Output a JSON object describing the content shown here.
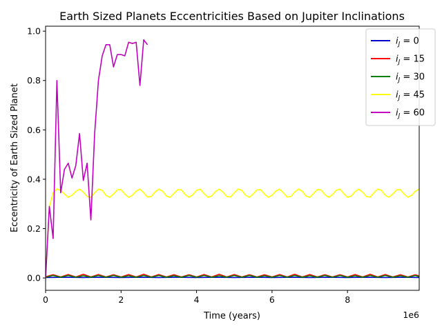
{
  "chart_data": {
    "type": "line",
    "title": "Earth Sized Planets Eccentricities Based on Jupiter Inclinations",
    "xlabel": "Time (years)",
    "ylabel": "Eccentricity of Earth Sized Planet",
    "x_offset_label": "1e6",
    "xlim": [
      0,
      9900000
    ],
    "ylim": [
      -0.05,
      1.02
    ],
    "x_ticks": [
      0,
      2000000,
      4000000,
      6000000,
      8000000
    ],
    "x_tick_labels": [
      "0",
      "2",
      "4",
      "6",
      "8"
    ],
    "y_ticks": [
      0.0,
      0.2,
      0.4,
      0.6,
      0.8,
      1.0
    ],
    "y_tick_labels": [
      "0.0",
      "0.2",
      "0.4",
      "0.6",
      "0.8",
      "1.0"
    ],
    "grid": false,
    "legend_position": "upper-right",
    "series": [
      {
        "name": "i_j = 0",
        "legend": {
          "prefix": "i",
          "sub": "J",
          "suffix": " = 0"
        },
        "color": "#0000cc",
        "x": [
          0,
          500000,
          1000000,
          1500000,
          2000000,
          2500000,
          3000000,
          3500000,
          4000000,
          4500000,
          5000000,
          5500000,
          6000000,
          6500000,
          7000000,
          7500000,
          8000000,
          8500000,
          9000000,
          9500000,
          9900000
        ],
        "y": [
          0.002,
          0.003,
          0.002,
          0.003,
          0.002,
          0.003,
          0.002,
          0.003,
          0.002,
          0.003,
          0.002,
          0.003,
          0.002,
          0.003,
          0.002,
          0.003,
          0.002,
          0.003,
          0.002,
          0.003,
          0.002
        ]
      },
      {
        "name": "i_j = 15",
        "legend": {
          "prefix": "i",
          "sub": "J",
          "suffix": " = 15"
        },
        "color": "#ff0000",
        "x": [
          0,
          200000,
          400000,
          600000,
          800000,
          1000000,
          1200000,
          1400000,
          1600000,
          1800000,
          2000000,
          2200000,
          2400000,
          2600000,
          2800000,
          3000000,
          3200000,
          3400000,
          3600000,
          3800000,
          4000000,
          4200000,
          4400000,
          4600000,
          4800000,
          5000000,
          5200000,
          5400000,
          5600000,
          5800000,
          6000000,
          6200000,
          6400000,
          6600000,
          6800000,
          7000000,
          7200000,
          7400000,
          7600000,
          7800000,
          8000000,
          8200000,
          8400000,
          8600000,
          8800000,
          9000000,
          9200000,
          9400000,
          9600000,
          9800000,
          9900000
        ],
        "y": [
          0.005,
          0.013,
          0.004,
          0.014,
          0.004,
          0.015,
          0.004,
          0.014,
          0.004,
          0.013,
          0.004,
          0.014,
          0.004,
          0.015,
          0.004,
          0.014,
          0.004,
          0.013,
          0.004,
          0.013,
          0.004,
          0.014,
          0.004,
          0.015,
          0.004,
          0.014,
          0.004,
          0.013,
          0.004,
          0.013,
          0.004,
          0.014,
          0.004,
          0.015,
          0.004,
          0.014,
          0.004,
          0.013,
          0.004,
          0.013,
          0.004,
          0.014,
          0.004,
          0.015,
          0.004,
          0.014,
          0.004,
          0.013,
          0.004,
          0.013,
          0.008
        ]
      },
      {
        "name": "i_j = 30",
        "legend": {
          "prefix": "i",
          "sub": "J",
          "suffix": " = 30"
        },
        "color": "#008000",
        "x": [
          0,
          200000,
          400000,
          600000,
          800000,
          1000000,
          1200000,
          1400000,
          1600000,
          1800000,
          2000000,
          2200000,
          2400000,
          2600000,
          2800000,
          3000000,
          3200000,
          3400000,
          3600000,
          3800000,
          4000000,
          4200000,
          4400000,
          4600000,
          4800000,
          5000000,
          5200000,
          5400000,
          5600000,
          5800000,
          6000000,
          6200000,
          6400000,
          6600000,
          6800000,
          7000000,
          7200000,
          7400000,
          7600000,
          7800000,
          8000000,
          8200000,
          8400000,
          8600000,
          8800000,
          9000000,
          9200000,
          9400000,
          9600000,
          9800000,
          9900000
        ],
        "y": [
          0.003,
          0.01,
          0.003,
          0.01,
          0.003,
          0.009,
          0.003,
          0.01,
          0.003,
          0.01,
          0.003,
          0.009,
          0.003,
          0.01,
          0.003,
          0.01,
          0.003,
          0.009,
          0.003,
          0.01,
          0.003,
          0.01,
          0.003,
          0.009,
          0.003,
          0.01,
          0.003,
          0.01,
          0.003,
          0.009,
          0.003,
          0.01,
          0.003,
          0.01,
          0.003,
          0.009,
          0.003,
          0.01,
          0.003,
          0.01,
          0.003,
          0.009,
          0.003,
          0.01,
          0.003,
          0.01,
          0.003,
          0.009,
          0.003,
          0.01,
          0.005
        ]
      },
      {
        "name": "i_j = 45",
        "legend": {
          "prefix": "i",
          "sub": "J",
          "suffix": " = 45"
        },
        "color": "#ffff00",
        "x": [
          0,
          100000,
          200000,
          300000,
          400000,
          500000,
          600000,
          700000,
          800000,
          900000,
          1000000,
          1100000,
          1200000,
          1300000,
          1400000,
          1500000,
          1600000,
          1700000,
          1800000,
          1900000,
          2000000,
          2100000,
          2200000,
          2300000,
          2400000,
          2500000,
          2600000,
          2700000,
          2800000,
          2900000,
          3000000,
          3100000,
          3200000,
          3300000,
          3400000,
          3500000,
          3600000,
          3700000,
          3800000,
          3900000,
          4000000,
          4100000,
          4200000,
          4300000,
          4400000,
          4500000,
          4600000,
          4700000,
          4800000,
          4900000,
          5000000,
          5100000,
          5200000,
          5300000,
          5400000,
          5500000,
          5600000,
          5700000,
          5800000,
          5900000,
          6000000,
          6100000,
          6200000,
          6300000,
          6400000,
          6500000,
          6600000,
          6700000,
          6800000,
          6900000,
          7000000,
          7100000,
          7200000,
          7300000,
          7400000,
          7500000,
          7600000,
          7700000,
          7800000,
          7900000,
          8000000,
          8100000,
          8200000,
          8300000,
          8400000,
          8500000,
          8600000,
          8700000,
          8800000,
          8900000,
          9000000,
          9100000,
          9200000,
          9300000,
          9400000,
          9500000,
          9600000,
          9700000,
          9800000,
          9900000
        ],
        "y": [
          0.0,
          0.29,
          0.345,
          0.36,
          0.355,
          0.34,
          0.327,
          0.335,
          0.35,
          0.36,
          0.348,
          0.33,
          0.327,
          0.345,
          0.36,
          0.355,
          0.335,
          0.327,
          0.34,
          0.357,
          0.358,
          0.34,
          0.327,
          0.335,
          0.352,
          0.36,
          0.345,
          0.328,
          0.33,
          0.348,
          0.36,
          0.352,
          0.332,
          0.327,
          0.342,
          0.358,
          0.357,
          0.338,
          0.327,
          0.337,
          0.355,
          0.36,
          0.342,
          0.327,
          0.332,
          0.35,
          0.36,
          0.348,
          0.33,
          0.328,
          0.345,
          0.36,
          0.355,
          0.335,
          0.327,
          0.34,
          0.357,
          0.358,
          0.34,
          0.327,
          0.335,
          0.352,
          0.36,
          0.345,
          0.328,
          0.33,
          0.348,
          0.36,
          0.352,
          0.332,
          0.327,
          0.342,
          0.358,
          0.357,
          0.338,
          0.327,
          0.337,
          0.355,
          0.36,
          0.342,
          0.327,
          0.332,
          0.35,
          0.36,
          0.348,
          0.33,
          0.328,
          0.345,
          0.36,
          0.355,
          0.335,
          0.327,
          0.34,
          0.357,
          0.358,
          0.34,
          0.327,
          0.335,
          0.352,
          0.36
        ]
      },
      {
        "name": "i_j = 60",
        "legend": {
          "prefix": "i",
          "sub": "J",
          "suffix": " = 60"
        },
        "color": "#bf00bf",
        "x": [
          0,
          100000,
          200000,
          300000,
          400000,
          500000,
          600000,
          700000,
          800000,
          900000,
          1000000,
          1100000,
          1200000,
          1300000,
          1400000,
          1500000,
          1600000,
          1700000,
          1800000,
          1900000,
          2000000,
          2100000,
          2200000,
          2300000,
          2400000,
          2500000,
          2600000,
          2700000
        ],
        "y": [
          0.0,
          0.29,
          0.16,
          0.8,
          0.345,
          0.44,
          0.465,
          0.405,
          0.455,
          0.585,
          0.395,
          0.465,
          0.235,
          0.585,
          0.8,
          0.9,
          0.945,
          0.945,
          0.855,
          0.905,
          0.905,
          0.9,
          0.955,
          0.95,
          0.955,
          0.78,
          0.965,
          0.945
        ]
      }
    ]
  }
}
